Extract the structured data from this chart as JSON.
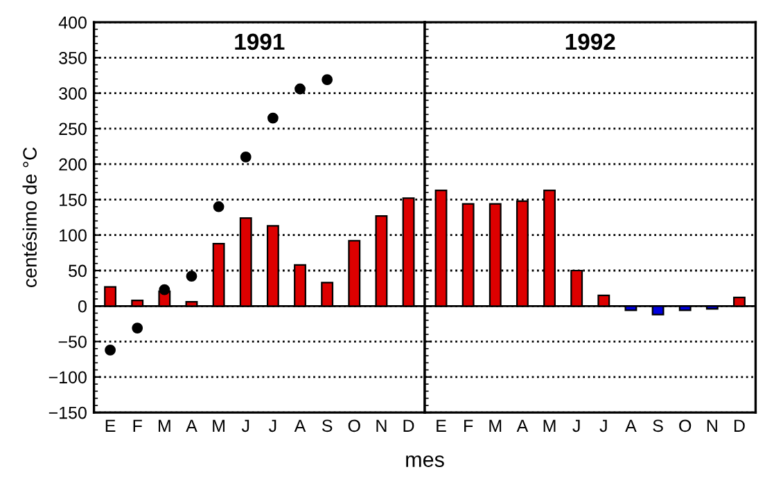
{
  "chart_data": [
    {
      "type": "bar",
      "title": "1991",
      "xlabel": "mes",
      "ylabel": "centésimo de °C",
      "categories": [
        "E",
        "F",
        "M",
        "A",
        "M",
        "J",
        "J",
        "A",
        "S",
        "O",
        "N",
        "D"
      ],
      "series": [
        {
          "color": "#dd0000",
          "values": [
            27,
            8,
            21,
            6,
            88,
            124,
            113,
            58,
            33,
            92,
            127,
            152
          ]
        },
        {
          "type": "scatter",
          "color": "#000000",
          "values": [
            -62,
            -31,
            23,
            42,
            140,
            210,
            265,
            306,
            319,
            null,
            null,
            null
          ]
        }
      ],
      "ylim": [
        -150,
        400
      ],
      "yticks": [
        -150,
        -100,
        -50,
        0,
        50,
        100,
        150,
        200,
        250,
        300,
        350,
        400
      ],
      "grid": "y",
      "marker": "circle"
    },
    {
      "type": "bar",
      "title": "1992",
      "categories": [
        "E",
        "F",
        "M",
        "A",
        "M",
        "J",
        "J",
        "A",
        "S",
        "O",
        "N",
        "D"
      ],
      "series": [
        {
          "colors": [
            "#dd0000",
            "#dd0000",
            "#dd0000",
            "#dd0000",
            "#dd0000",
            "#dd0000",
            "#dd0000",
            "#0000dd",
            "#0000dd",
            "#0000dd",
            "#0000dd",
            "#dd0000"
          ],
          "values": [
            163,
            144,
            144,
            148,
            163,
            50,
            15,
            -6,
            -12,
            -6,
            -4,
            12
          ]
        }
      ],
      "ylim": [
        -150,
        400
      ],
      "yticks": [
        -150,
        -100,
        -50,
        0,
        50,
        100,
        150,
        200,
        250,
        300,
        350,
        400
      ],
      "grid": "y",
      "tick_labels": "x"
    }
  ]
}
